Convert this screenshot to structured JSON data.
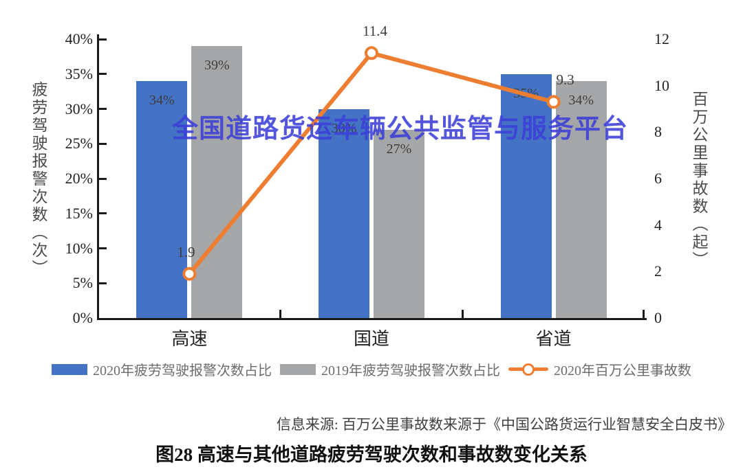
{
  "watermark": {
    "text": "全国道路货运车辆公共监管与服务平台",
    "color": "#3c3fd9"
  },
  "source_note": "信息来源: 百万公里事故数来源于《中国公路货运行业智慧安全白皮书》",
  "caption": "图28 高速与其他道路疲劳驾驶次数和事故数变化关系",
  "chart_data": {
    "type": "combo (bar + line)",
    "categories": [
      "高速",
      "国道",
      "省道"
    ],
    "series": [
      {
        "name": "2020年疲劳驾驶报警次数占比",
        "type": "bar",
        "color": "#4472C4",
        "values": [
          34,
          30,
          35
        ],
        "labels": [
          "34%",
          "30%",
          "35%"
        ]
      },
      {
        "name": "2019年疲劳驾驶报警次数占比",
        "type": "bar",
        "color": "#A5A6A7",
        "values": [
          39,
          27,
          34
        ],
        "labels": [
          "39%",
          "27%",
          "34%"
        ]
      }
    ],
    "line_series": {
      "name": "2020年百万公里事故数",
      "type": "line",
      "color": "#ED7D31",
      "marker": "open-circle",
      "values": [
        1.9,
        11.4,
        9.3
      ],
      "labels": [
        "1.9",
        "11.4",
        "9.3"
      ]
    },
    "left_axis": {
      "title": "疲劳驾驶报警次数（次）",
      "max": 40,
      "min": 0,
      "ticks": [
        {
          "value": 0,
          "label": "0%"
        },
        {
          "value": 5,
          "label": "5%"
        },
        {
          "value": 10,
          "label": "10%"
        },
        {
          "value": 15,
          "label": "15%"
        },
        {
          "value": 20,
          "label": "20%"
        },
        {
          "value": 25,
          "label": "25%"
        },
        {
          "value": 30,
          "label": "30%"
        },
        {
          "value": 35,
          "label": "35%"
        },
        {
          "value": 40,
          "label": "40%"
        }
      ]
    },
    "right_axis": {
      "title": "百万公里事故数（起）",
      "max": 12,
      "min": 0,
      "ticks": [
        {
          "value": 0,
          "label": "0"
        },
        {
          "value": 2,
          "label": "2"
        },
        {
          "value": 4,
          "label": "4"
        },
        {
          "value": 6,
          "label": "6"
        },
        {
          "value": 8,
          "label": "8"
        },
        {
          "value": 10,
          "label": "10"
        },
        {
          "value": 12,
          "label": "12"
        }
      ]
    },
    "grid": "off",
    "legend_position": "bottom"
  }
}
